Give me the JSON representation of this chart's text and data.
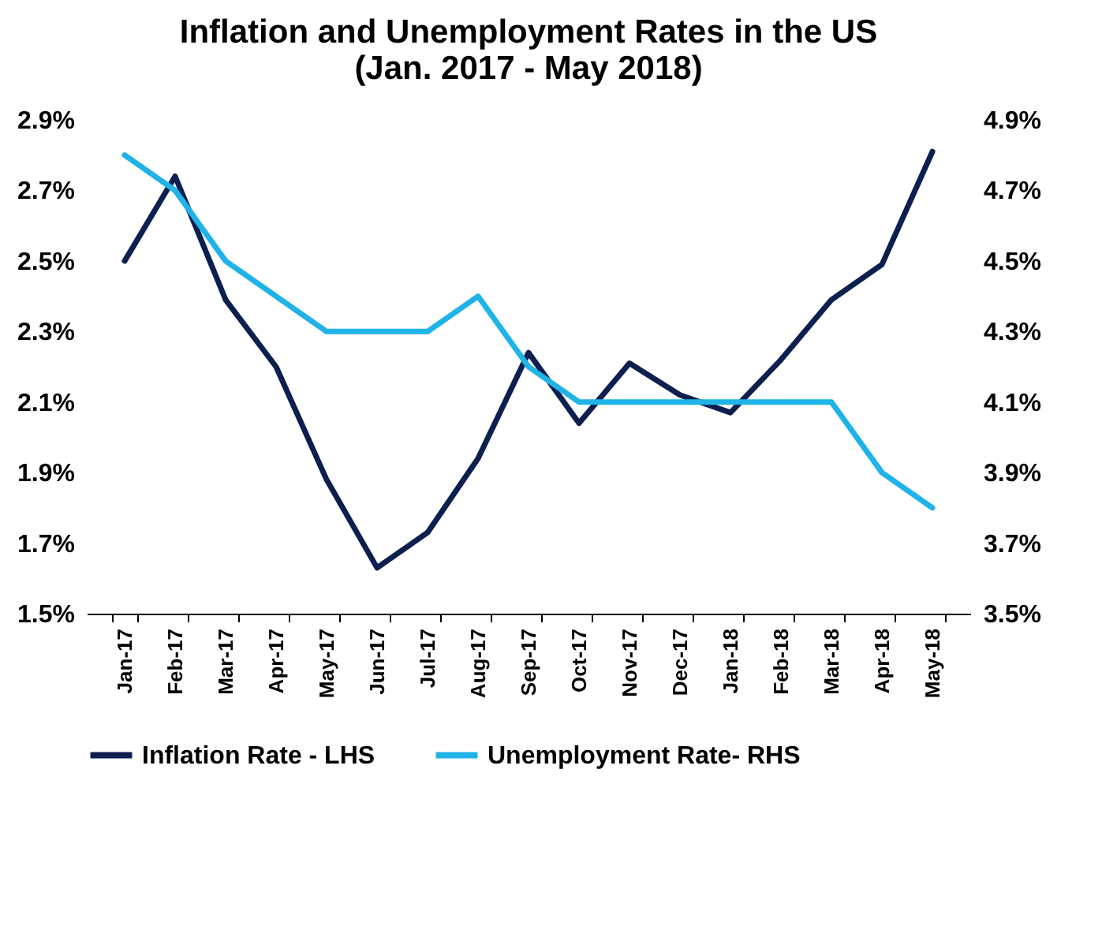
{
  "chart_data": {
    "type": "line",
    "title": "Inflation and Unemployment Rates in the US\n(Jan. 2017 - May 2018)",
    "categories": [
      "Jan-17",
      "Feb-17",
      "Mar-17",
      "Apr-17",
      "May-17",
      "Jun-17",
      "Jul-17",
      "Aug-17",
      "Sep-17",
      "Oct-17",
      "Nov-17",
      "Dec-17",
      "Jan-18",
      "Feb-18",
      "Mar-18",
      "Apr-18",
      "May-18"
    ],
    "series": [
      {
        "name": "Inflation Rate - LHS",
        "color": "#0c1f4f",
        "values": [
          2.5,
          2.74,
          2.39,
          2.2,
          1.88,
          1.63,
          1.73,
          1.94,
          2.24,
          2.04,
          2.21,
          2.12,
          2.07,
          2.22,
          2.39,
          2.49,
          2.81
        ]
      },
      {
        "name": "Unemployment Rate- RHS",
        "color": "#1fb3e8",
        "axis": "y2",
        "values": [
          4.8,
          4.7,
          4.5,
          4.4,
          4.3,
          4.3,
          4.3,
          4.4,
          4.2,
          4.1,
          4.1,
          4.1,
          4.1,
          4.1,
          4.1,
          3.9,
          3.8
        ]
      }
    ],
    "ylim": [
      1.5,
      2.9
    ],
    "yticks": [
      {
        "value": 1.5,
        "label": "1.5%"
      },
      {
        "value": 1.7,
        "label": "1.7%"
      },
      {
        "value": 1.9,
        "label": "1.9%"
      },
      {
        "value": 2.1,
        "label": "2.1%"
      },
      {
        "value": 2.3,
        "label": "2.3%"
      },
      {
        "value": 2.5,
        "label": "2.5%"
      },
      {
        "value": 2.7,
        "label": "2.7%"
      },
      {
        "value": 2.9,
        "label": "2.9%"
      }
    ],
    "y2lim": [
      3.5,
      4.9
    ],
    "y2ticks": [
      {
        "value": 3.5,
        "label": "3.5%"
      },
      {
        "value": 3.7,
        "label": "3.7%"
      },
      {
        "value": 3.9,
        "label": "3.9%"
      },
      {
        "value": 4.1,
        "label": "4.1%"
      },
      {
        "value": 4.3,
        "label": "4.3%"
      },
      {
        "value": 4.5,
        "label": "4.5%"
      },
      {
        "value": 4.7,
        "label": "4.7%"
      },
      {
        "value": 4.9,
        "label": "4.9%"
      }
    ],
    "grid": false,
    "legend": "bottom",
    "marker": "none",
    "line_style": "solid"
  }
}
